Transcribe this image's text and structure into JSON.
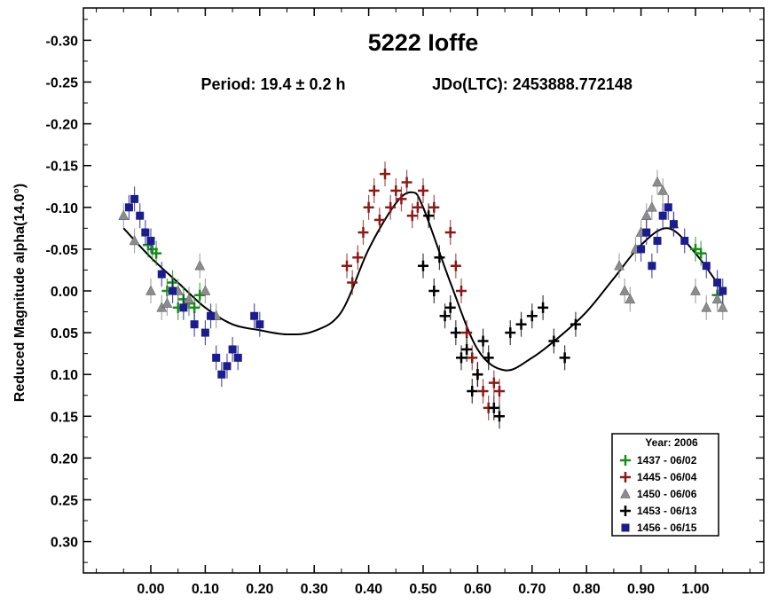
{
  "chart_data": {
    "type": "scatter",
    "title": "5222 Ioffe",
    "period_label": "Period: 19.4 ± 0.2 h",
    "epoch_label": "JDo(LTC): 2453888.772148",
    "ylabel": "Reduced Magnitude alpha(14.0°)",
    "xlabel": "",
    "xlim": [
      -0.12,
      1.12
    ],
    "ylim": [
      0.35,
      -0.35
    ],
    "y_inverted": true,
    "x_ticks": [
      0.0,
      0.1,
      0.2,
      0.3,
      0.4,
      0.5,
      0.6,
      0.7,
      0.8,
      0.9,
      1.0
    ],
    "x_tick_labels": [
      "0.00",
      "0.10",
      "0.20",
      "0.30",
      "0.40",
      "0.50",
      "0.60",
      "0.70",
      "0.80",
      "0.90",
      "1.00"
    ],
    "y_ticks": [
      -0.3,
      -0.25,
      -0.2,
      -0.15,
      -0.1,
      -0.05,
      0.0,
      0.05,
      0.1,
      0.15,
      0.2,
      0.25,
      0.3
    ],
    "y_tick_labels": [
      "-0.30",
      "-0.25",
      "-0.20",
      "-0.15",
      "-0.10",
      "-0.05",
      "0.00",
      "0.05",
      "0.10",
      "0.15",
      "0.20",
      "0.25",
      "0.30"
    ],
    "legend": {
      "position": "bottom-right",
      "title": "Year: 2006",
      "entries": [
        {
          "label": "1437 - 06/02",
          "marker": "plus",
          "color": "#1a8c1a"
        },
        {
          "label": "1445 - 06/04",
          "marker": "plus",
          "color": "#8b1a1a"
        },
        {
          "label": "1450 - 06/06",
          "marker": "triangle",
          "color": "#8c8c8c"
        },
        {
          "label": "1453 - 06/13",
          "marker": "plus",
          "color": "#000000"
        },
        {
          "label": "1456 - 06/15",
          "marker": "square",
          "color": "#1c1c8c"
        }
      ]
    },
    "fit_curve": {
      "x": [
        -0.05,
        0.0,
        0.05,
        0.1,
        0.15,
        0.2,
        0.25,
        0.3,
        0.35,
        0.4,
        0.45,
        0.48,
        0.5,
        0.55,
        0.6,
        0.65,
        0.7,
        0.75,
        0.8,
        0.85,
        0.9,
        0.95,
        1.0,
        1.05
      ],
      "y": [
        -0.075,
        -0.04,
        -0.01,
        0.02,
        0.04,
        0.047,
        0.052,
        0.048,
        0.025,
        -0.05,
        -0.105,
        -0.118,
        -0.1,
        -0.01,
        0.07,
        0.095,
        0.08,
        0.055,
        0.025,
        -0.015,
        -0.055,
        -0.075,
        -0.045,
        0.0
      ]
    },
    "series": [
      {
        "name": "1437 - 06/02",
        "marker": "plus",
        "color": "#1a8c1a",
        "x": [
          -0.005,
          0.003,
          0.01,
          0.03,
          0.04,
          0.05,
          0.06,
          0.07,
          0.08,
          0.09,
          1.0,
          1.01,
          1.04
        ],
        "y": [
          -0.055,
          -0.05,
          -0.045,
          0.0,
          -0.01,
          0.02,
          0.01,
          0.015,
          0.02,
          0.005,
          -0.05,
          -0.045,
          0.005
        ]
      },
      {
        "name": "1445 - 06/04",
        "marker": "plus",
        "color": "#8b1a1a",
        "x": [
          0.36,
          0.37,
          0.38,
          0.39,
          0.4,
          0.41,
          0.42,
          0.43,
          0.44,
          0.45,
          0.46,
          0.47,
          0.48,
          0.49,
          0.5,
          0.52,
          0.55,
          0.56,
          0.57,
          0.58,
          0.59,
          0.6,
          0.61,
          0.62,
          0.63,
          0.64
        ],
        "y": [
          -0.03,
          -0.01,
          -0.04,
          -0.07,
          -0.1,
          -0.12,
          -0.085,
          -0.14,
          -0.1,
          -0.12,
          -0.11,
          -0.13,
          -0.09,
          -0.1,
          -0.12,
          -0.1,
          -0.07,
          -0.03,
          0.0,
          0.05,
          0.08,
          0.1,
          0.12,
          0.14,
          0.11,
          0.12
        ]
      },
      {
        "name": "1450 - 06/06",
        "marker": "triangle",
        "color": "#8c8c8c",
        "x": [
          -0.05,
          -0.03,
          0.0,
          0.02,
          0.03,
          0.05,
          0.07,
          0.09,
          0.1,
          0.12,
          0.86,
          0.87,
          0.88,
          0.89,
          0.9,
          0.91,
          0.92,
          0.93,
          0.94,
          0.96,
          1.0,
          1.02,
          1.04,
          1.05
        ],
        "y": [
          -0.09,
          -0.06,
          0.0,
          0.02,
          0.015,
          0.0,
          0.01,
          -0.03,
          0.0,
          0.03,
          -0.03,
          0.0,
          0.01,
          -0.05,
          -0.07,
          -0.09,
          -0.1,
          -0.13,
          -0.12,
          -0.08,
          0.0,
          0.02,
          0.01,
          0.02
        ]
      },
      {
        "name": "1453 - 06/13",
        "marker": "plus",
        "color": "#000000",
        "x": [
          0.5,
          0.51,
          0.52,
          0.53,
          0.54,
          0.55,
          0.56,
          0.57,
          0.58,
          0.59,
          0.6,
          0.61,
          0.62,
          0.63,
          0.64,
          0.66,
          0.68,
          0.7,
          0.72,
          0.74,
          0.76,
          0.78
        ],
        "y": [
          -0.03,
          -0.09,
          0.0,
          -0.04,
          0.03,
          0.02,
          0.05,
          0.08,
          0.07,
          0.12,
          0.1,
          0.06,
          0.08,
          0.14,
          0.15,
          0.05,
          0.04,
          0.03,
          0.02,
          0.06,
          0.08,
          0.04
        ]
      },
      {
        "name": "1456 - 06/15",
        "marker": "square",
        "color": "#1c1c8c",
        "x": [
          -0.04,
          -0.03,
          -0.02,
          -0.01,
          0.0,
          0.02,
          0.04,
          0.06,
          0.08,
          0.1,
          0.11,
          0.12,
          0.13,
          0.14,
          0.15,
          0.16,
          0.19,
          0.2,
          0.9,
          0.91,
          0.92,
          0.93,
          0.94,
          0.95,
          0.96,
          0.98,
          1.02,
          1.04,
          1.05
        ],
        "y": [
          -0.1,
          -0.11,
          -0.09,
          -0.07,
          -0.06,
          -0.02,
          0.0,
          0.02,
          0.04,
          0.05,
          0.03,
          0.08,
          0.1,
          0.09,
          0.07,
          0.08,
          0.03,
          0.04,
          -0.05,
          -0.07,
          -0.03,
          -0.06,
          -0.09,
          -0.1,
          -0.08,
          -0.06,
          -0.03,
          -0.01,
          0.0
        ]
      }
    ]
  }
}
